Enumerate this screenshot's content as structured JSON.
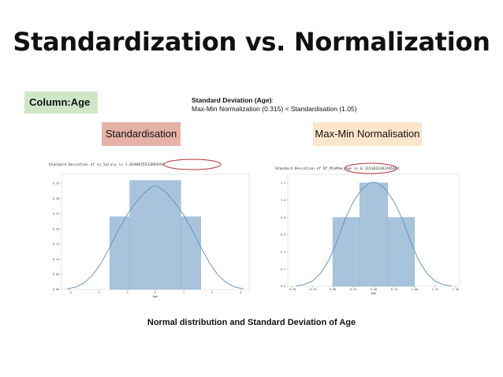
{
  "slide": {
    "title": "Standardization vs. Normalization",
    "column_label": "Column:Age",
    "sd_heading": "Standard Deviation (Age)",
    "sd_colon": ":",
    "sd_comparison": "Max-Min Normalization (0.315) < Standardisation (1.05)",
    "label_standardisation": "Standardisation",
    "label_maxmin": "Max-Min Normalisation",
    "caption": "Normal distribution and Standard Deviation of Age",
    "colors": {
      "bar": "#a8c3dc",
      "curve": "#5e8fbf",
      "highlight_ellipse": "#b9323a",
      "label_standardisation_bg": "#e6b1a6",
      "label_maxmin_bg": "#fbe5cc",
      "column_bg": "#cfe7c7"
    }
  },
  "chart_data": [
    {
      "type": "bar",
      "header_text": "Standard Deviation of sc_Salary is 1.0540925533894598",
      "xlabel": "Age",
      "xlim": [
        -3.3,
        3.3
      ],
      "ylim": [
        0,
        0.38
      ],
      "xticks": [
        -3,
        -2,
        -1,
        0,
        1,
        2,
        3
      ],
      "xtick_labels": [
        "-3",
        "-2",
        "-1",
        "0",
        "1",
        "2",
        "3"
      ],
      "yticks": [
        0,
        0.05,
        0.1,
        0.15,
        0.2,
        0.25,
        0.3,
        0.35
      ],
      "ytick_labels": [
        "0.00",
        "0.05",
        "0.10",
        "0.15",
        "0.20",
        "0.25",
        "0.30",
        "0.35"
      ],
      "bins": [
        {
          "x0": -1.6,
          "x1": -0.9,
          "value": 0.24
        },
        {
          "x0": -0.9,
          "x1": 0.9,
          "value": 0.36
        },
        {
          "x0": 0.9,
          "x1": 1.6,
          "value": 0.24
        }
      ],
      "curve": {
        "x": [
          -3.1,
          -2.8,
          -2.5,
          -2.2,
          -1.9,
          -1.6,
          -1.3,
          -1.0,
          -0.7,
          -0.4,
          -0.1,
          0.0,
          0.1,
          0.4,
          0.7,
          1.0,
          1.3,
          1.6,
          1.9,
          2.2,
          2.5,
          2.8,
          3.1
        ],
        "y": [
          0.002,
          0.008,
          0.022,
          0.048,
          0.088,
          0.14,
          0.195,
          0.245,
          0.285,
          0.318,
          0.34,
          0.342,
          0.34,
          0.318,
          0.285,
          0.245,
          0.195,
          0.14,
          0.088,
          0.048,
          0.022,
          0.008,
          0.002
        ]
      }
    },
    {
      "type": "bar",
      "header_text": "Standard Deviation of Df_MinMax_Age is 0.3153816182405694",
      "xlabel": "Age",
      "xlim": [
        -0.55,
        1.55
      ],
      "ylim": [
        0,
        1.3
      ],
      "xticks": [
        -0.5,
        -0.25,
        0,
        0.25,
        0.5,
        0.75,
        1.0,
        1.25,
        1.5
      ],
      "xtick_labels": [
        "-0.50",
        "-0.25",
        "0.00",
        "0.25",
        "0.50",
        "0.75",
        "1.00",
        "1.25",
        "1.50"
      ],
      "yticks": [
        0,
        0.2,
        0.4,
        0.6,
        0.8,
        1.0,
        1.2
      ],
      "ytick_labels": [
        "0.0",
        "0.2",
        "0.4",
        "0.6",
        "0.8",
        "1.0",
        "1.2"
      ],
      "bins": [
        {
          "x0": 0.0,
          "x1": 0.33,
          "value": 0.8
        },
        {
          "x0": 0.33,
          "x1": 0.67,
          "value": 1.2
        },
        {
          "x0": 0.67,
          "x1": 1.0,
          "value": 0.8
        }
      ],
      "curve": {
        "x": [
          -0.45,
          -0.35,
          -0.25,
          -0.15,
          -0.05,
          0.05,
          0.15,
          0.25,
          0.35,
          0.45,
          0.5,
          0.55,
          0.65,
          0.75,
          0.85,
          0.95,
          1.05,
          1.15,
          1.25,
          1.35,
          1.45
        ],
        "y": [
          0.005,
          0.02,
          0.06,
          0.15,
          0.3,
          0.52,
          0.78,
          0.98,
          1.12,
          1.2,
          1.21,
          1.2,
          1.12,
          0.98,
          0.78,
          0.52,
          0.3,
          0.15,
          0.06,
          0.02,
          0.005
        ]
      }
    }
  ]
}
